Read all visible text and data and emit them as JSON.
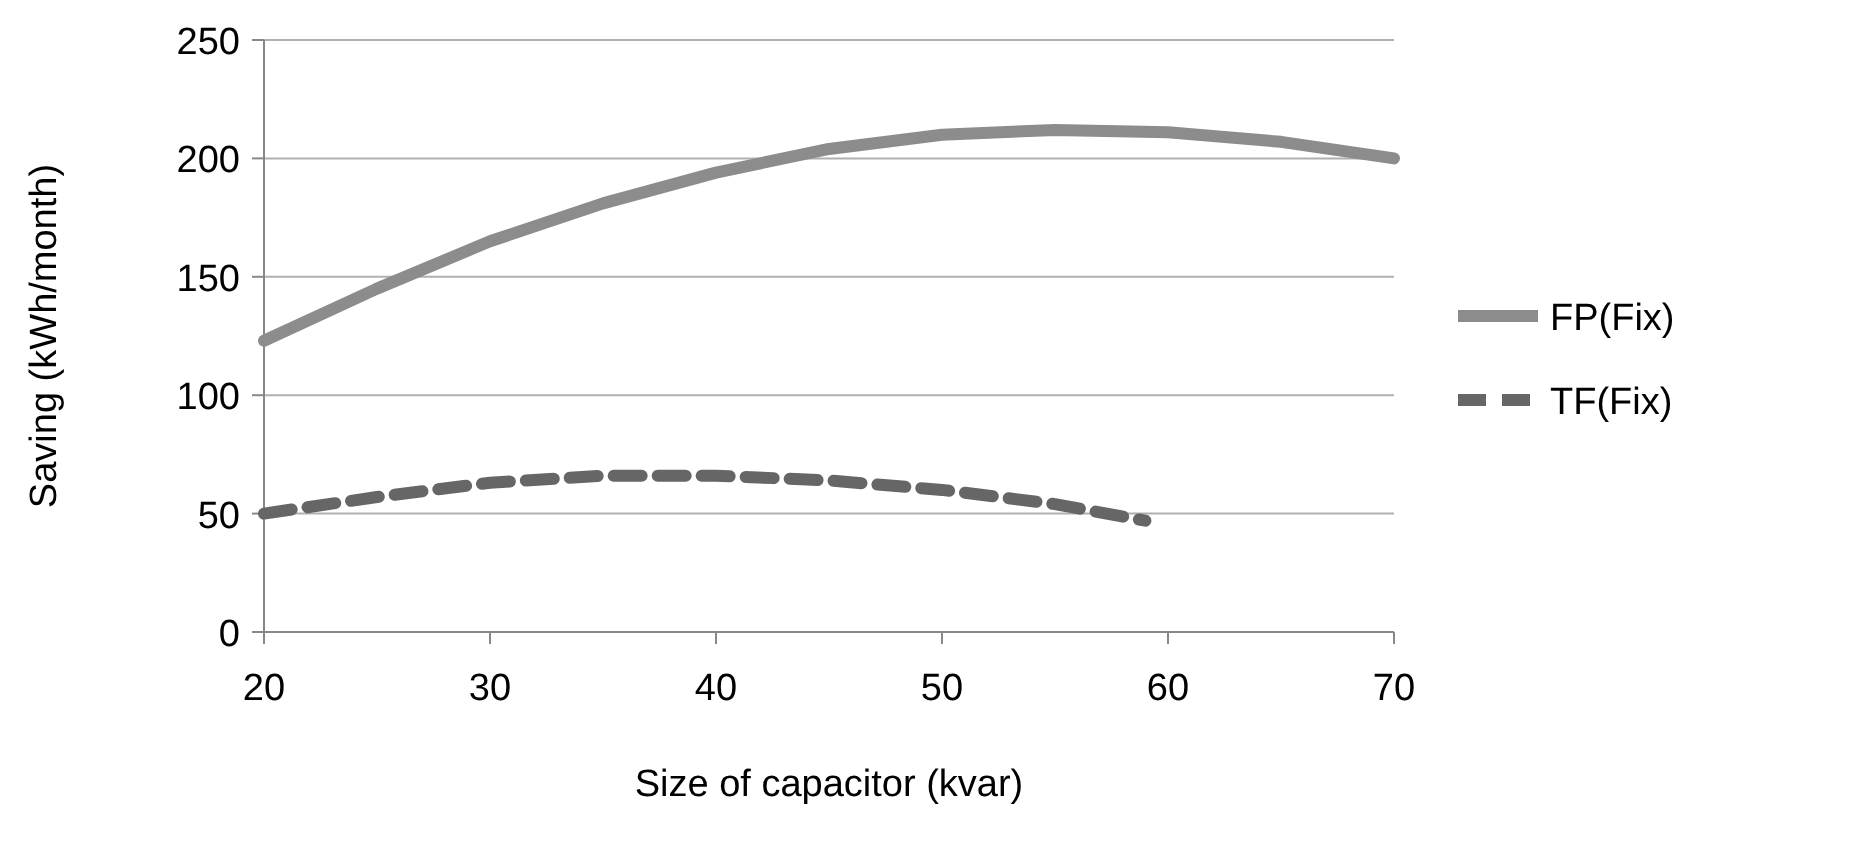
{
  "chart_data": {
    "type": "line",
    "xlabel": "Size of capacitor (kvar)",
    "ylabel": "Saving (kWh/month)",
    "xlim": [
      20,
      70
    ],
    "xticks": [
      20,
      30,
      40,
      50,
      60,
      70
    ],
    "ylim": [
      0,
      250
    ],
    "yticks": [
      0,
      50,
      100,
      150,
      200,
      250
    ],
    "grid": "y",
    "legend": "right",
    "series": [
      {
        "name": "FP(Fix)",
        "color": "#8c8c8c",
        "line_style": "solid",
        "x": [
          20,
          25,
          30,
          35,
          40,
          45,
          50,
          55,
          60,
          65,
          70
        ],
        "values": [
          123,
          145,
          165,
          181,
          194,
          204,
          210,
          212,
          211,
          207,
          200
        ]
      },
      {
        "name": "TF(Fix)",
        "color": "#666666",
        "line_style": "dashed",
        "x": [
          20,
          25,
          30,
          35,
          40,
          45,
          50,
          55,
          59
        ],
        "values": [
          50,
          57,
          63,
          66,
          66,
          64,
          60,
          54,
          47
        ]
      }
    ]
  }
}
